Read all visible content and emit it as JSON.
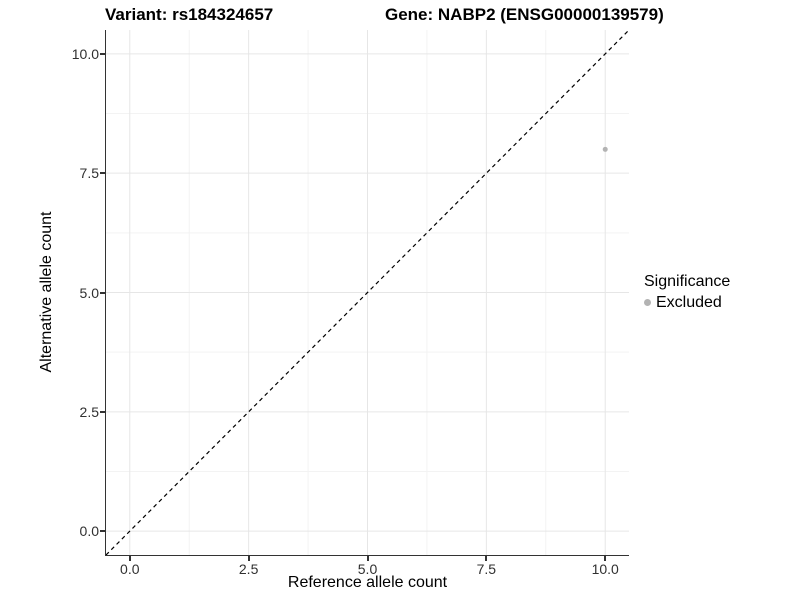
{
  "chart_data": {
    "type": "scatter",
    "title_left": "Variant: rs184324657",
    "title_right": "Gene: NABP2 (ENSG00000139579)",
    "xlabel": "Reference allele count",
    "ylabel": "Alternative allele count",
    "x_tick_labels": [
      "0.0",
      "2.5",
      "5.0",
      "7.5",
      "10.0"
    ],
    "x_tick_values": [
      0,
      2.5,
      5,
      7.5,
      10
    ],
    "y_tick_labels": [
      "0.0",
      "2.5",
      "5.0",
      "7.5",
      "10.0"
    ],
    "y_tick_values": [
      0,
      2.5,
      5,
      7.5,
      10
    ],
    "xlim": [
      -0.5,
      10.5
    ],
    "ylim": [
      -0.5,
      10.5
    ],
    "grid": {
      "major": true,
      "minor": true
    },
    "identity_line": {
      "style": "dashed",
      "from": [
        -0.5,
        -0.5
      ],
      "to": [
        10.5,
        10.5
      ]
    },
    "series": [
      {
        "name": "Excluded",
        "color": "#b3b3b3",
        "points": [
          {
            "x": 10,
            "y": 8
          }
        ]
      }
    ],
    "legend": {
      "title": "Significance",
      "position": "right",
      "entries": [
        {
          "label": "Excluded",
          "color": "#b3b3b3",
          "marker": "circle"
        }
      ]
    }
  },
  "colors": {
    "background": "#ffffff",
    "grid_major": "#e6e6e6",
    "grid_minor": "#f3f3f3",
    "axis_line": "#333333",
    "tick_label": "#303030",
    "identity_line": "#000000",
    "point": "#b3b3b3"
  }
}
